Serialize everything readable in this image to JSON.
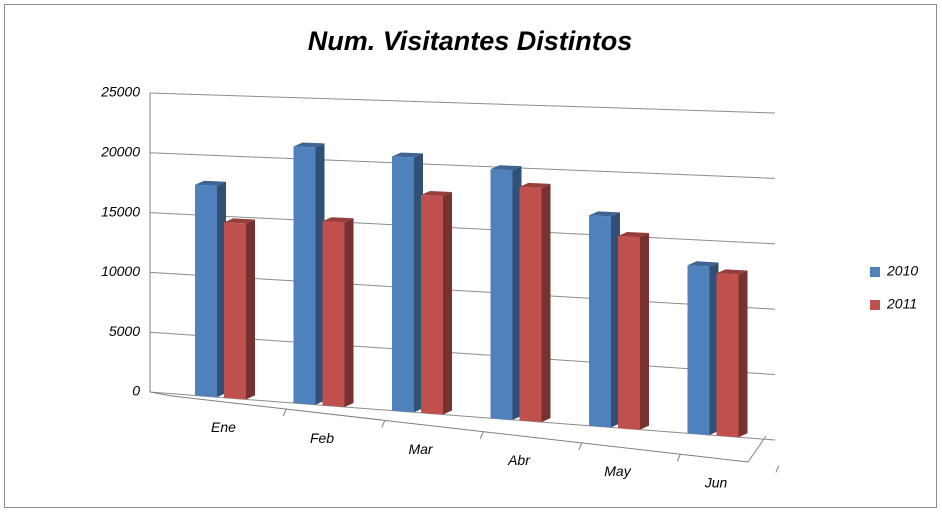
{
  "chart_data": {
    "type": "bar3d",
    "title": "Num. Visitantes Distintos",
    "categories": [
      "Ene",
      "Feb",
      "Mar",
      "Abr",
      "May",
      "Jun"
    ],
    "series": [
      {
        "name": "2010",
        "color": "#4f81bd",
        "values": [
          17500,
          21000,
          20500,
          19800,
          16500,
          13000
        ]
      },
      {
        "name": "2011",
        "color": "#c0504d",
        "values": [
          14500,
          15000,
          17500,
          18500,
          15000,
          12500
        ]
      }
    ],
    "ylim": [
      0,
      25000
    ],
    "yticks": [
      0,
      5000,
      10000,
      15000,
      20000,
      25000
    ],
    "grid": true,
    "legend": "right"
  }
}
